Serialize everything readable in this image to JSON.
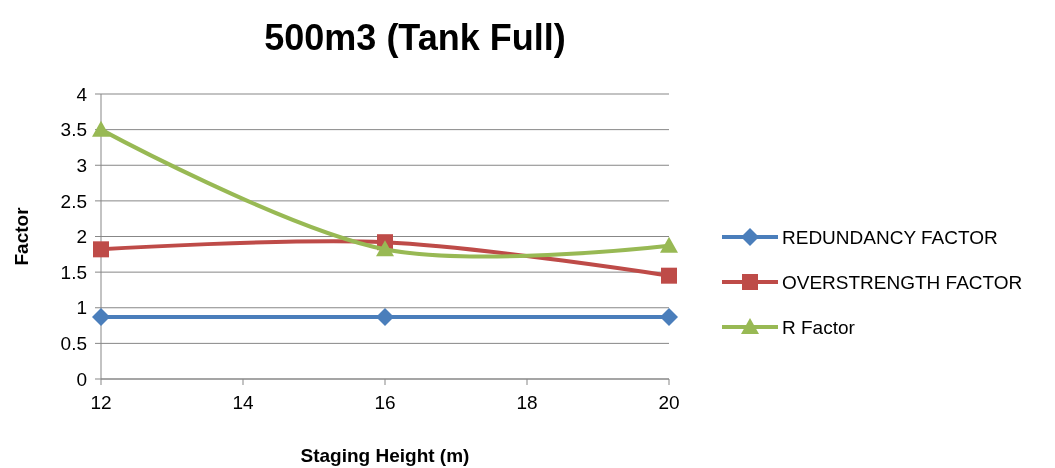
{
  "chart_data": {
    "type": "line",
    "title": "500m3 (Tank Full)",
    "xlabel": "Staging Height (m)",
    "ylabel": "Factor",
    "x": [
      12,
      16,
      20
    ],
    "xlim": [
      12,
      20
    ],
    "xticks": [
      12,
      14,
      16,
      18,
      20
    ],
    "ylim": [
      0,
      4
    ],
    "yticks": [
      0,
      0.5,
      1,
      1.5,
      2,
      2.5,
      3,
      3.5,
      4
    ],
    "grid": "y",
    "legend": "right",
    "series": [
      {
        "name": "REDUNDANCY FACTOR",
        "color": "#4a7ebb",
        "values": [
          0.87,
          0.87,
          0.87
        ],
        "marker": "diamond"
      },
      {
        "name": "OVERSTRENGTH FACTOR",
        "color": "#be4b48",
        "values": [
          1.82,
          1.92,
          1.45
        ],
        "marker": "square"
      },
      {
        "name": "R Factor",
        "color": "#98b954",
        "values": [
          3.5,
          1.82,
          1.87
        ],
        "marker": "triangle"
      }
    ]
  }
}
